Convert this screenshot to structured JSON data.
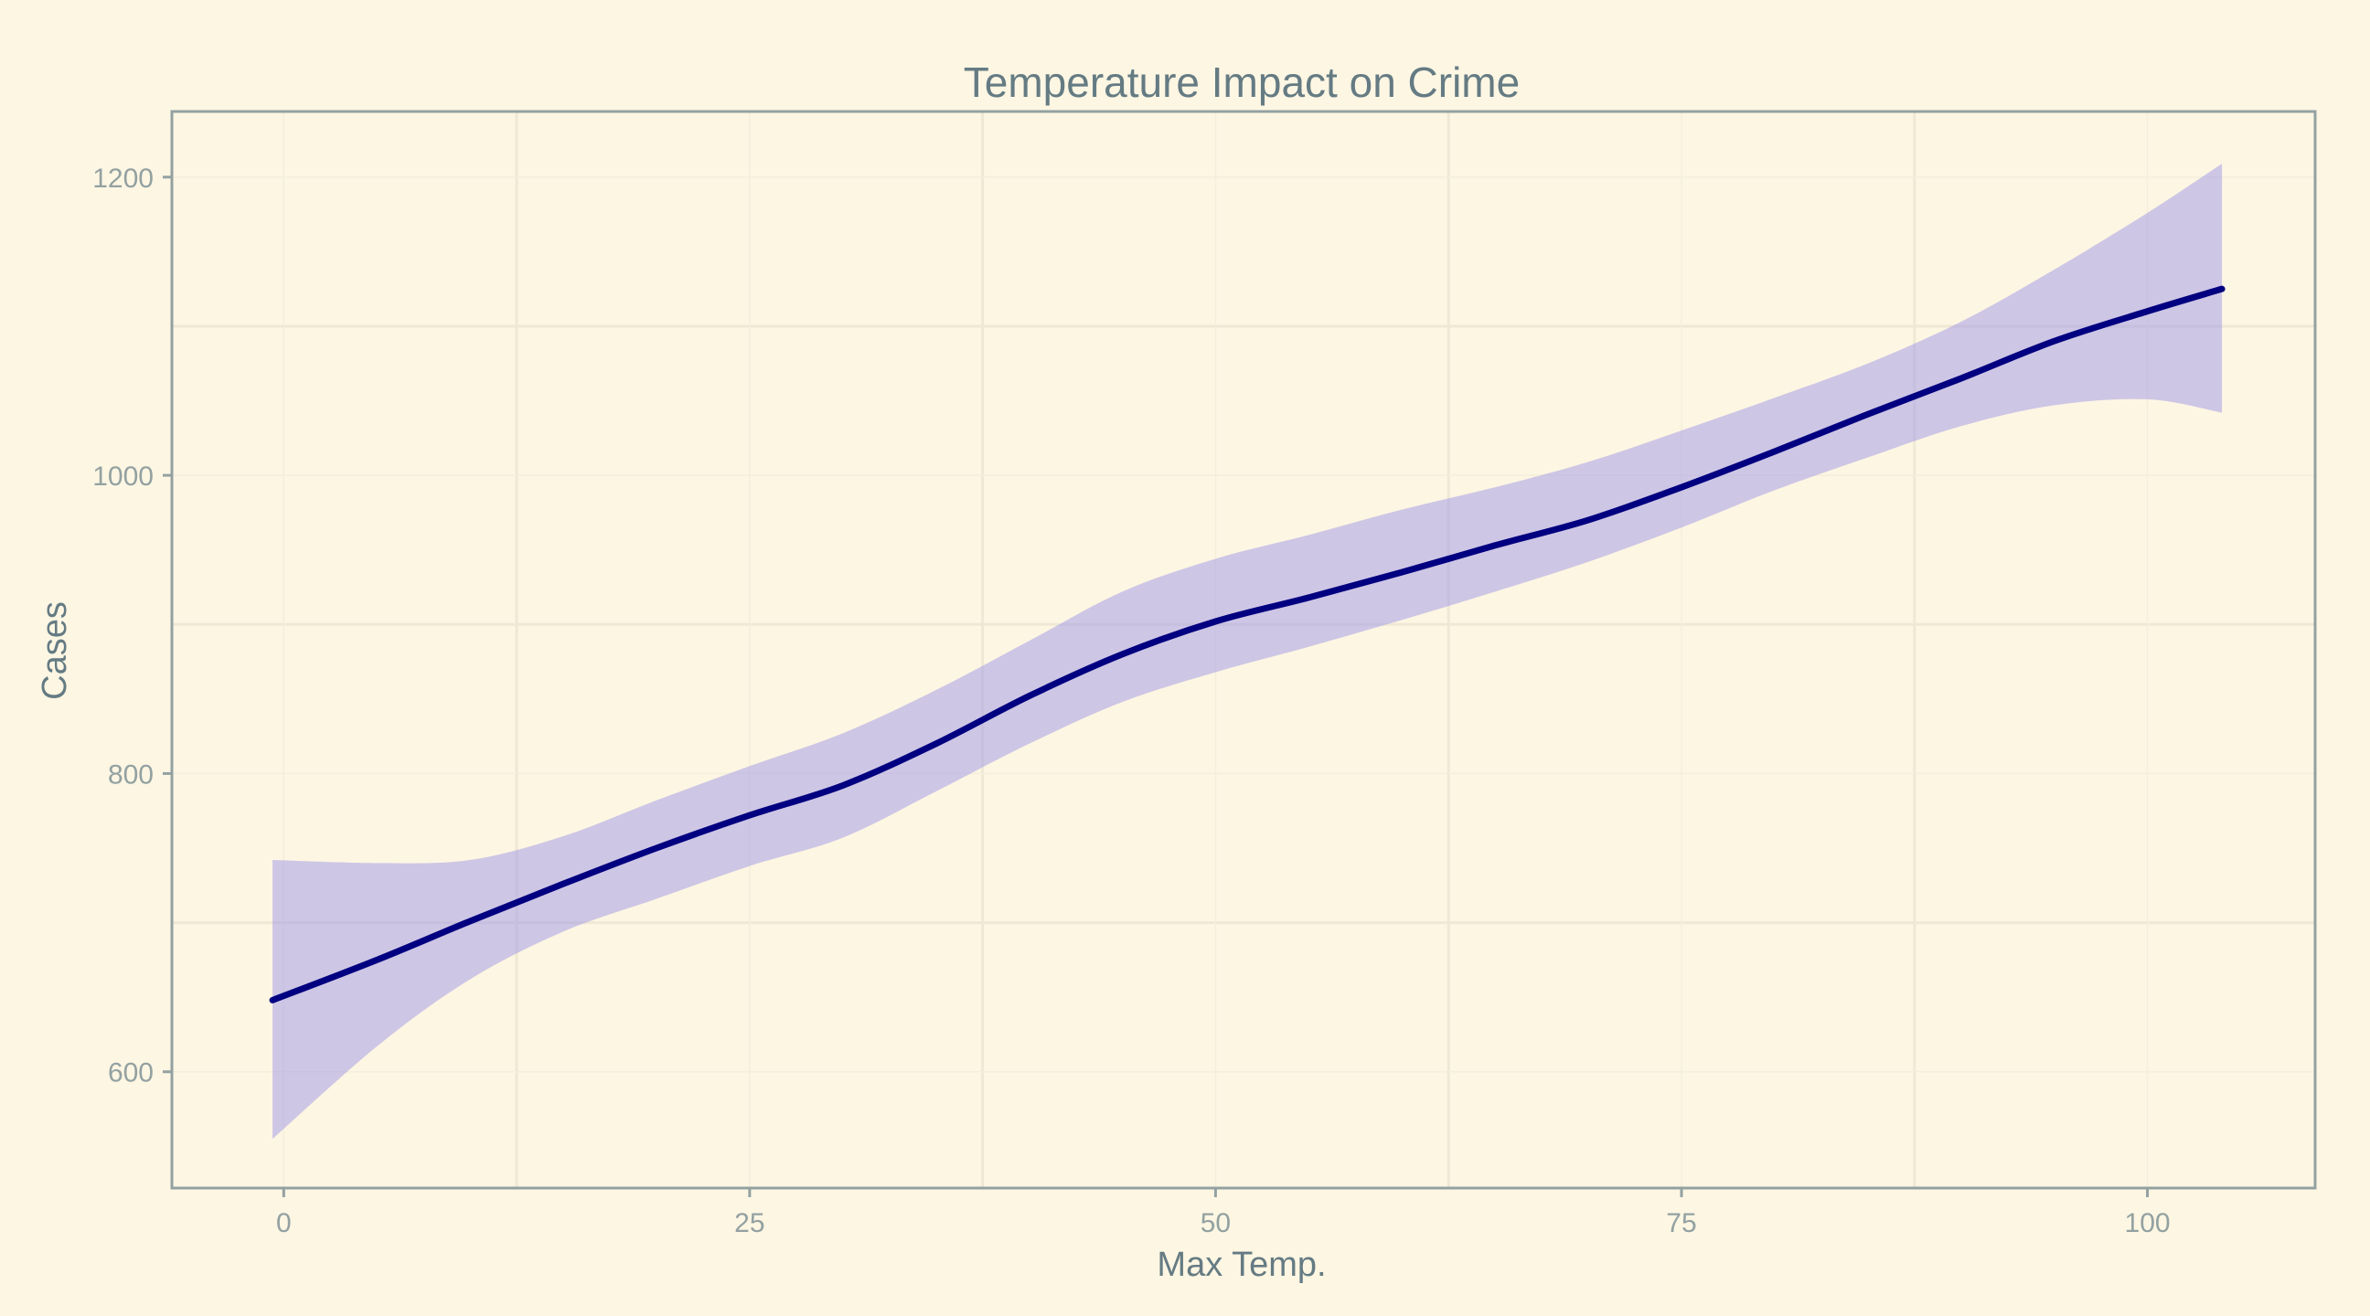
{
  "chart_data": {
    "type": "line",
    "title": "Temperature Impact on Crime",
    "xlabel": "Max Temp.",
    "ylabel": "Cases",
    "xlim": [
      -6,
      109
    ],
    "ylim": [
      522,
      1244
    ],
    "x_ticks": [
      0,
      25,
      50,
      75,
      100
    ],
    "y_ticks": [
      600,
      800,
      1000,
      1200
    ],
    "x_tick_labels": [
      "0",
      "25",
      "50",
      "75",
      "100"
    ],
    "y_tick_labels": [
      "600",
      "800",
      "1000",
      "1200"
    ],
    "grid": true,
    "series": [
      {
        "kind": "smooth-fit",
        "color": "#000080",
        "band_color": "#9f96e8",
        "x": [
          -0.6,
          5,
          10,
          15,
          20,
          25,
          30,
          35,
          40,
          45,
          50,
          55,
          60,
          65,
          70,
          75,
          80,
          85,
          90,
          95,
          100,
          104
        ],
        "y": [
          648,
          675,
          701,
          726,
          750,
          772,
          792,
          820,
          852,
          880,
          902,
          918,
          935,
          953,
          970,
          992,
          1016,
          1041,
          1065,
          1090,
          1110,
          1125
        ],
        "lower": [
          555,
          617,
          662,
          694,
          716,
          738,
          757,
          788,
          820,
          848,
          868,
          885,
          903,
          922,
          942,
          965,
          990,
          1012,
          1033,
          1047,
          1051,
          1042
        ],
        "upper": [
          742,
          740,
          742,
          758,
          782,
          805,
          827,
          856,
          889,
          922,
          944,
          960,
          977,
          992,
          1009,
          1030,
          1052,
          1075,
          1103,
          1138,
          1176,
          1209
        ]
      }
    ]
  }
}
